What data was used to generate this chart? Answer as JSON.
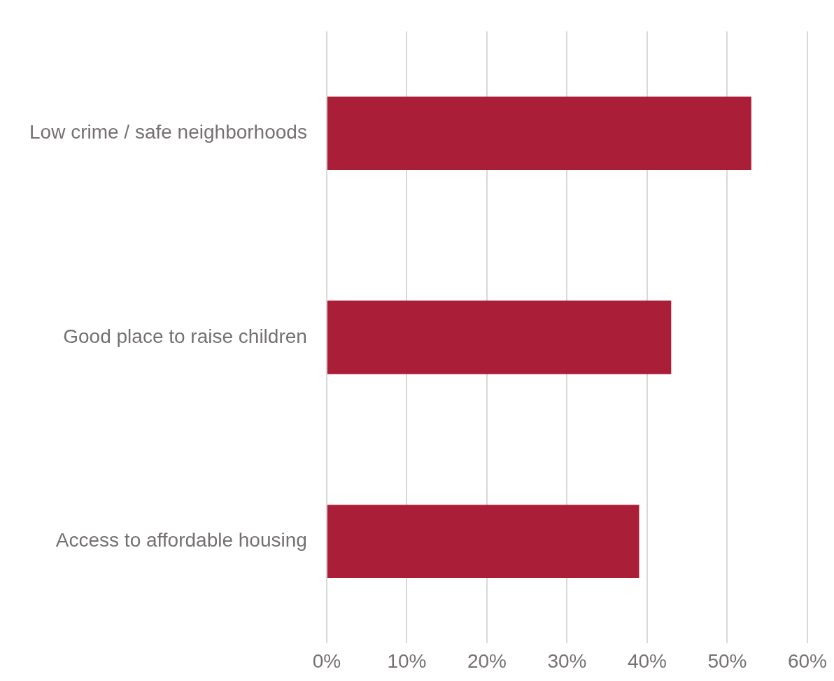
{
  "chart_data": {
    "type": "bar",
    "orientation": "horizontal",
    "categories": [
      "Low crime / safe neighborhoods",
      "Good place to raise children",
      "Access to affordable housing"
    ],
    "values": [
      53,
      43,
      39
    ],
    "color": "#ab1e37",
    "xlim": [
      0,
      60
    ],
    "xticks": [
      {
        "value": 0,
        "label": "0%"
      },
      {
        "value": 10,
        "label": "10%"
      },
      {
        "value": 20,
        "label": "20%"
      },
      {
        "value": 30,
        "label": "30%"
      },
      {
        "value": 40,
        "label": "40%"
      },
      {
        "value": 50,
        "label": "50%"
      },
      {
        "value": 60,
        "label": "60%"
      }
    ],
    "grid": "x",
    "legend": false
  }
}
